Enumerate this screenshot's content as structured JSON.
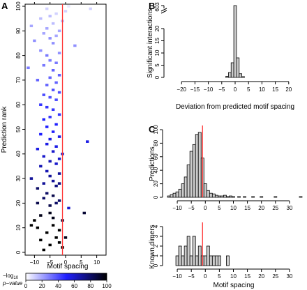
{
  "panel_letters": [
    "A",
    "B",
    "C"
  ],
  "colorbar": {
    "label_line1": "−log",
    "label_sub": "10",
    "label_line2": "p−value",
    "ticks": [
      "0",
      "20",
      "40",
      "60",
      "80",
      "100"
    ],
    "color_min": "#ffffff",
    "color_mid": "#2020ff",
    "color_max": "#000000"
  },
  "colors": {
    "bar_fill": "#cccccc",
    "bar_stroke": "#000000",
    "ref_line": "#ff3333"
  },
  "chart_data": [
    {
      "id": "A",
      "type": "heatmap",
      "xlabel": "Motif spacing",
      "ylabel": "Prediction rank",
      "xlim": [
        -13,
        13
      ],
      "ylim": [
        0,
        100
      ],
      "xticks": [
        -10,
        -5,
        0,
        5,
        10
      ],
      "yticks": [
        0,
        10,
        20,
        30,
        40,
        50,
        60,
        70,
        80,
        90,
        100
      ],
      "ref_x": -1,
      "cells": [
        {
          "x": -10,
          "y": 13,
          "p": 100
        },
        {
          "x": -11,
          "y": 11,
          "p": 100
        },
        {
          "x": -9,
          "y": 10,
          "p": 100
        },
        {
          "x": -4,
          "y": 11,
          "p": 100
        },
        {
          "x": -6,
          "y": 8,
          "p": 100
        },
        {
          "x": -2,
          "y": 9,
          "p": 100
        },
        {
          "x": -3,
          "y": 6,
          "p": 100
        },
        {
          "x": -8,
          "y": 5,
          "p": 100
        },
        {
          "x": -5,
          "y": 3,
          "p": 100
        },
        {
          "x": -1,
          "y": 2,
          "p": 100
        },
        {
          "x": -7,
          "y": 1,
          "p": 100
        },
        {
          "x": -2,
          "y": 4,
          "p": 100
        },
        {
          "x": -1,
          "y": 13,
          "p": 90
        },
        {
          "x": -5,
          "y": 16,
          "p": 95
        },
        {
          "x": 6,
          "y": 16,
          "p": 90
        },
        {
          "x": -8,
          "y": 15,
          "p": 95
        },
        {
          "x": 0,
          "y": 6,
          "p": 95
        },
        {
          "x": -4,
          "y": 14,
          "p": 95
        },
        {
          "x": -9,
          "y": 20,
          "p": 85
        },
        {
          "x": -5,
          "y": 19,
          "p": 85
        },
        {
          "x": -3,
          "y": 20,
          "p": 80
        },
        {
          "x": 1,
          "y": 18,
          "p": 60
        },
        {
          "x": -7,
          "y": 22,
          "p": 80
        },
        {
          "x": -4,
          "y": 23,
          "p": 85
        },
        {
          "x": -2,
          "y": 21,
          "p": 80
        },
        {
          "x": -6,
          "y": 24,
          "p": 80
        },
        {
          "x": -9,
          "y": 26,
          "p": 80
        },
        {
          "x": -3,
          "y": 27,
          "p": 75
        },
        {
          "x": -7,
          "y": 28,
          "p": 70
        },
        {
          "x": -2,
          "y": 28,
          "p": 75
        },
        {
          "x": -11,
          "y": 30,
          "p": 70
        },
        {
          "x": -5,
          "y": 31,
          "p": 70
        },
        {
          "x": -4,
          "y": 29,
          "p": 70
        },
        {
          "x": -2,
          "y": 32,
          "p": 70
        },
        {
          "x": -6,
          "y": 33,
          "p": 65
        },
        {
          "x": -8,
          "y": 35,
          "p": 65
        },
        {
          "x": -3,
          "y": 36,
          "p": 60
        },
        {
          "x": -5,
          "y": 37,
          "p": 65
        },
        {
          "x": -2,
          "y": 38,
          "p": 60
        },
        {
          "x": -7,
          "y": 39,
          "p": 60
        },
        {
          "x": -1,
          "y": 40,
          "p": 60
        },
        {
          "x": -4,
          "y": 41,
          "p": 60
        },
        {
          "x": -9,
          "y": 42,
          "p": 55
        },
        {
          "x": -3,
          "y": 43,
          "p": 55
        },
        {
          "x": -6,
          "y": 44,
          "p": 55
        },
        {
          "x": 7,
          "y": 45,
          "p": 55
        },
        {
          "x": -5,
          "y": 46,
          "p": 55
        },
        {
          "x": -2,
          "y": 47,
          "p": 55
        },
        {
          "x": -8,
          "y": 48,
          "p": 50
        },
        {
          "x": -4,
          "y": 49,
          "p": 50
        },
        {
          "x": -6,
          "y": 51,
          "p": 50
        },
        {
          "x": -3,
          "y": 52,
          "p": 50
        },
        {
          "x": -7,
          "y": 54,
          "p": 50
        },
        {
          "x": -5,
          "y": 55,
          "p": 45
        },
        {
          "x": -2,
          "y": 56,
          "p": 45
        },
        {
          "x": -4,
          "y": 58,
          "p": 45
        },
        {
          "x": -6,
          "y": 59,
          "p": 45
        },
        {
          "x": -8,
          "y": 60,
          "p": 45
        },
        {
          "x": -3,
          "y": 62,
          "p": 40
        },
        {
          "x": -5,
          "y": 63,
          "p": 40
        },
        {
          "x": -7,
          "y": 64,
          "p": 40
        },
        {
          "x": -2,
          "y": 65,
          "p": 40
        },
        {
          "x": -4,
          "y": 66,
          "p": 40
        },
        {
          "x": -6,
          "y": 68,
          "p": 35
        },
        {
          "x": -3,
          "y": 69,
          "p": 35
        },
        {
          "x": -9,
          "y": 70,
          "p": 35
        },
        {
          "x": -5,
          "y": 71,
          "p": 35
        },
        {
          "x": -2,
          "y": 72,
          "p": 35
        },
        {
          "x": -4,
          "y": 74,
          "p": 35
        },
        {
          "x": -12,
          "y": 75,
          "p": 30
        },
        {
          "x": -7,
          "y": 76,
          "p": 30
        },
        {
          "x": -3,
          "y": 77,
          "p": 30
        },
        {
          "x": -5,
          "y": 78,
          "p": 30
        },
        {
          "x": -6,
          "y": 80,
          "p": 30
        },
        {
          "x": -2,
          "y": 81,
          "p": 25
        },
        {
          "x": -8,
          "y": 82,
          "p": 25
        },
        {
          "x": 3,
          "y": 84,
          "p": 25
        },
        {
          "x": -4,
          "y": 85,
          "p": 25
        },
        {
          "x": -10,
          "y": 86,
          "p": 25
        },
        {
          "x": -5,
          "y": 87,
          "p": 25
        },
        {
          "x": -3,
          "y": 88,
          "p": 20
        },
        {
          "x": -7,
          "y": 89,
          "p": 20
        },
        {
          "x": -2,
          "y": 90,
          "p": 20
        },
        {
          "x": -6,
          "y": 91,
          "p": 20
        },
        {
          "x": -11,
          "y": 92,
          "p": 20
        },
        {
          "x": -4,
          "y": 93,
          "p": 15
        },
        {
          "x": -1,
          "y": 94,
          "p": 15
        },
        {
          "x": -8,
          "y": 95,
          "p": 15
        },
        {
          "x": -5,
          "y": 96,
          "p": 15
        },
        {
          "x": -3,
          "y": 97,
          "p": 10
        },
        {
          "x": 0,
          "y": 98,
          "p": 10
        },
        {
          "x": -6,
          "y": 99,
          "p": 10
        },
        {
          "x": 8,
          "y": 99,
          "p": 10
        },
        {
          "x": 1,
          "y": 100,
          "p": 5
        }
      ]
    },
    {
      "id": "B",
      "type": "bar",
      "xlabel": "Deviation from predicted motif spacing",
      "ylabel": "Significant interactions",
      "xlim": [
        -25,
        25
      ],
      "xticks": [
        -20,
        -15,
        -10,
        -5,
        0,
        5,
        10,
        15,
        20
      ],
      "yticks": [
        0,
        5,
        10,
        15,
        20
      ],
      "ybreak_tick": 603,
      "ylim_lower": [
        0,
        24
      ],
      "bins": [
        -3,
        -2,
        -1,
        0,
        1,
        2,
        3
      ],
      "values": [
        0.4,
        2,
        6,
        603,
        8,
        1.5,
        0.3
      ]
    },
    {
      "id": "C-top",
      "type": "bar",
      "xlabel": "",
      "ylabel": "Predictions",
      "xlim": [
        -14,
        35
      ],
      "ylim": [
        0,
        100
      ],
      "xticks": [
        -10,
        -5,
        0,
        5,
        10,
        15,
        20,
        25,
        30
      ],
      "yticks": [
        0,
        20,
        40,
        60,
        80,
        100
      ],
      "ref_x": -1,
      "bins": [
        -13,
        -12,
        -11,
        -10,
        -9,
        -8,
        -7,
        -6,
        -5,
        -4,
        -3,
        -2,
        -1,
        0,
        1,
        2,
        3,
        4,
        5,
        6,
        7,
        8,
        9,
        10,
        12,
        14,
        17,
        20,
        25,
        34
      ],
      "values": [
        2,
        4,
        6,
        8,
        12,
        20,
        30,
        48,
        68,
        78,
        93,
        96,
        58,
        20,
        10,
        6,
        5,
        3,
        2,
        2,
        3,
        1,
        2,
        1,
        1,
        1,
        1,
        1,
        1,
        1
      ]
    },
    {
      "id": "C-bottom",
      "type": "bar",
      "xlabel": "Motif spacing",
      "ylabel": "Known dimers",
      "xlim": [
        -14,
        35
      ],
      "ylim": [
        0,
        4
      ],
      "xticks": [
        -10,
        -5,
        0,
        5,
        10,
        15,
        20,
        25,
        30
      ],
      "yticks": [
        0,
        1,
        2,
        3,
        4
      ],
      "ref_x": -1,
      "bins": [
        -10,
        -9,
        -8,
        -7,
        -6,
        -5,
        -4,
        -3,
        -2,
        -1,
        0,
        1,
        2,
        3,
        4,
        5,
        8
      ],
      "values": [
        1,
        2,
        1,
        2,
        3,
        1,
        3,
        1,
        2,
        1,
        1,
        2,
        1,
        1,
        1,
        1,
        1
      ]
    }
  ]
}
